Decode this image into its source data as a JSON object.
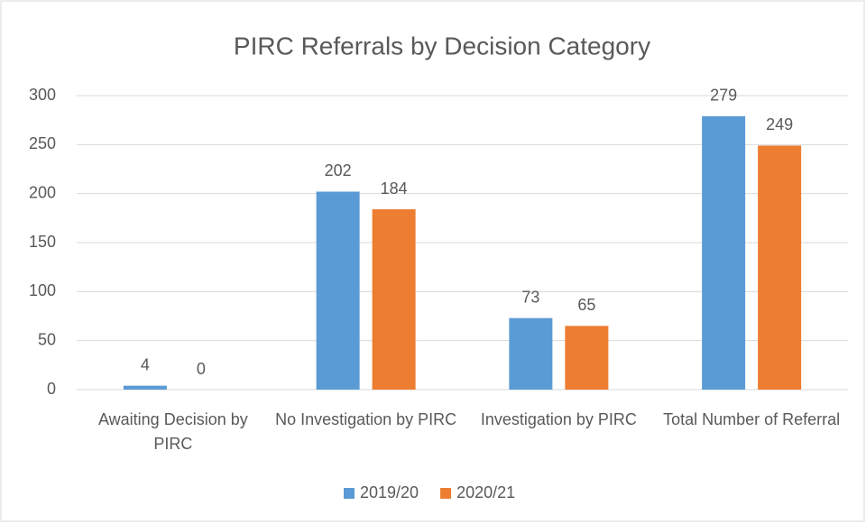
{
  "chart_data": {
    "type": "bar",
    "title": "PIRC Referrals by Decision Category",
    "categories": [
      "Awaiting Decision by PIRC",
      "No Investigation by PIRC",
      "Investigation by PIRC",
      "Total Number of Referral"
    ],
    "series": [
      {
        "name": "2019/20",
        "color": "#5b9bd5",
        "values": [
          4,
          202,
          73,
          279
        ]
      },
      {
        "name": "2020/21",
        "color": "#ed7d31",
        "values": [
          0,
          184,
          65,
          249
        ]
      }
    ],
    "ylim": [
      0,
      300
    ],
    "yticks": [
      0,
      50,
      100,
      150,
      200,
      250,
      300
    ],
    "grid": true,
    "legend": "bottom"
  }
}
